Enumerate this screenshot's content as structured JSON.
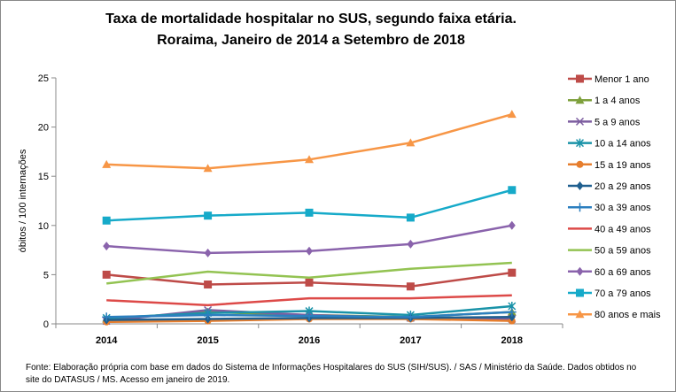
{
  "chart_data": {
    "type": "line",
    "title": "Taxa de mortalidade hospitalar no SUS, segundo faixa etária.",
    "subtitle": "Roraima, Janeiro de 2014 a Setembro de 2018",
    "ylabel": "óbitos / 100 internações",
    "xlabel": "",
    "categories": [
      "2014",
      "2015",
      "2016",
      "2017",
      "2018"
    ],
    "ylim": [
      0,
      25
    ],
    "yticks": [
      0,
      5,
      10,
      15,
      20,
      25
    ],
    "grid": false,
    "legend": "right",
    "series": [
      {
        "name": "Menor 1 ano",
        "color": "#be4b48",
        "marker": "square",
        "values": [
          5.0,
          4.0,
          4.2,
          3.8,
          5.2
        ]
      },
      {
        "name": "1 a 4 anos",
        "color": "#7ea03c",
        "marker": "triangle",
        "values": [
          0.5,
          1.2,
          0.9,
          0.7,
          1.2
        ]
      },
      {
        "name": "5 a 9 anos",
        "color": "#7d5ea0",
        "marker": "x",
        "values": [
          0.3,
          1.4,
          0.9,
          0.6,
          0.5
        ]
      },
      {
        "name": "10 a 14 anos",
        "color": "#1a93a8",
        "marker": "star",
        "values": [
          0.6,
          1.1,
          1.3,
          0.9,
          1.8
        ]
      },
      {
        "name": "15 a 19 anos",
        "color": "#e67e2e",
        "marker": "circle",
        "values": [
          0.2,
          0.3,
          0.5,
          0.5,
          0.3
        ]
      },
      {
        "name": "20 a 29 anos",
        "color": "#1f5f8f",
        "marker": "diamond",
        "values": [
          0.4,
          0.5,
          0.6,
          0.6,
          0.7
        ]
      },
      {
        "name": "30 a 39 anos",
        "color": "#2c7fbf",
        "marker": "plus",
        "values": [
          0.7,
          0.9,
          0.8,
          0.7,
          1.2
        ]
      },
      {
        "name": "40 a 49 anos",
        "color": "#dd4a48",
        "marker": "none",
        "values": [
          2.4,
          1.9,
          2.6,
          2.6,
          2.9
        ]
      },
      {
        "name": "50 a 59 anos",
        "color": "#93c352",
        "marker": "none",
        "values": [
          4.1,
          5.3,
          4.7,
          5.6,
          6.2
        ]
      },
      {
        "name": "60 a 69 anos",
        "color": "#8a63ac",
        "marker": "diamond",
        "values": [
          7.9,
          7.2,
          7.4,
          8.1,
          10.0
        ]
      },
      {
        "name": "70 a 79 anos",
        "color": "#16aac9",
        "marker": "square",
        "values": [
          10.5,
          11.0,
          11.3,
          10.8,
          13.6
        ]
      },
      {
        "name": "80 anos e mais",
        "color": "#f79646",
        "marker": "triangle",
        "values": [
          16.2,
          15.8,
          16.7,
          18.4,
          21.3
        ]
      }
    ]
  },
  "footer": {
    "line1": "Fonte: Elaboração própria com base em dados do  Sistema de Informações Hospitalares do SUS (SIH/SUS). / SAS / Ministério da Saúde. Dados obtidos no",
    "line2": "site do DATASUS / MS. Acesso em janeiro de 2019."
  }
}
